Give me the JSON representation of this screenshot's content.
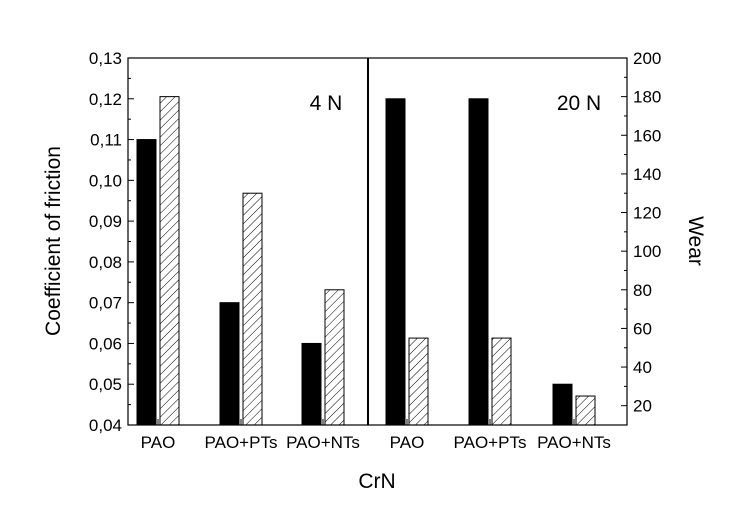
{
  "chart_data": {
    "type": "bar",
    "xlabel": "CrN",
    "ylabel": "Coefficient of friction",
    "y2label": "Wear",
    "ylim": [
      0.04,
      0.13
    ],
    "y2lim": [
      10,
      200
    ],
    "yticks": [
      "0,04",
      "0,05",
      "0,06",
      "0,07",
      "0,08",
      "0,09",
      "0,10",
      "0,11",
      "0,12",
      "0,13"
    ],
    "y2ticks": [
      "20",
      "40",
      "60",
      "80",
      "100",
      "120",
      "140",
      "160",
      "180",
      "200"
    ],
    "grid": false,
    "legend": "none",
    "bar_colors": {
      "friction": "#000000",
      "wear": "#ffffff"
    },
    "groups": [
      {
        "label": "4 N",
        "categories": [
          "PAO",
          "PAO+PTs",
          "PAO+NTs"
        ],
        "series": [
          {
            "axis": "left",
            "style": "solid",
            "values": [
              0.11,
              0.07,
              0.06
            ]
          },
          {
            "axis": "right",
            "style": "hatched",
            "values": [
              180,
              130,
              80
            ]
          }
        ]
      },
      {
        "label": "20 N",
        "categories": [
          "PAO",
          "PAO+PTs",
          "PAO+NTs"
        ],
        "series": [
          {
            "axis": "left",
            "style": "solid",
            "values": [
              0.12,
              0.12,
              0.05
            ]
          },
          {
            "axis": "right",
            "style": "hatched",
            "values": [
              55,
              55,
              25
            ]
          }
        ]
      }
    ]
  }
}
